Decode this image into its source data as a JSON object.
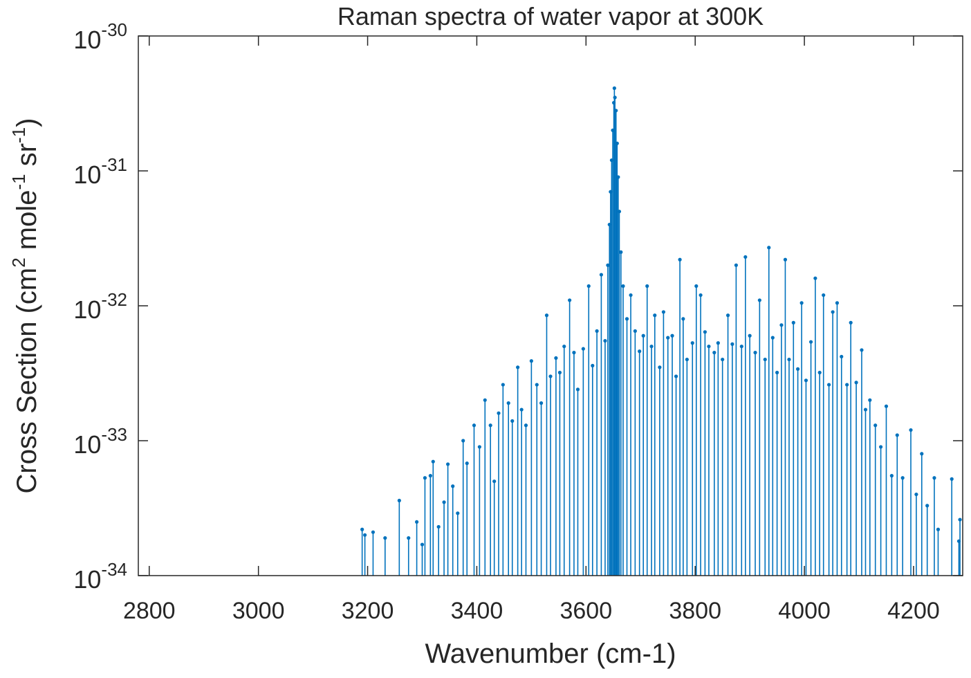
{
  "chart_data": {
    "type": "stem",
    "title": "Raman spectra of water vapor at 300K",
    "x_label": "Wavenumber (cm-1)",
    "y_label_parts": [
      "Cross Section (cm",
      "2",
      " mole",
      "-1",
      " sr",
      "-1",
      ")"
    ],
    "log_y": true,
    "box": true,
    "xlim": [
      2780,
      4290
    ],
    "xticks": [
      2800,
      3000,
      3200,
      3400,
      3600,
      3800,
      4000,
      4200
    ],
    "ylim": [
      1e-34,
      1e-30
    ],
    "yticks": [
      {
        "value": 1e-34,
        "base": "10",
        "exponent": "-34"
      },
      {
        "value": 1e-33,
        "base": "10",
        "exponent": "-33"
      },
      {
        "value": 1e-32,
        "base": "10",
        "exponent": "-32"
      },
      {
        "value": 1e-31,
        "base": "10",
        "exponent": "-31"
      },
      {
        "value": 1e-30,
        "base": "10",
        "exponent": "-30"
      }
    ],
    "series": [
      {
        "name": "Cross Section",
        "color": "#0072BD",
        "x": [
          3190,
          3195,
          3210,
          3232,
          3258,
          3275,
          3290,
          3300,
          3305,
          3315,
          3320,
          3330,
          3340,
          3347,
          3356,
          3365,
          3375,
          3382,
          3395,
          3405,
          3415,
          3425,
          3432,
          3440,
          3448,
          3458,
          3465,
          3475,
          3482,
          3490,
          3500,
          3510,
          3518,
          3528,
          3535,
          3545,
          3552,
          3560,
          3570,
          3578,
          3585,
          3595,
          3605,
          3612,
          3620,
          3628,
          3635,
          3640,
          3643,
          3645,
          3647,
          3649,
          3651,
          3652,
          3653,
          3655,
          3657,
          3659,
          3661,
          3664,
          3668,
          3675,
          3682,
          3690,
          3698,
          3705,
          3712,
          3720,
          3726,
          3735,
          3742,
          3750,
          3758,
          3765,
          3772,
          3778,
          3785,
          3795,
          3802,
          3810,
          3818,
          3825,
          3835,
          3842,
          3850,
          3860,
          3868,
          3875,
          3885,
          3892,
          3900,
          3910,
          3918,
          3928,
          3935,
          3942,
          3950,
          3958,
          3965,
          3972,
          3980,
          3988,
          3995,
          4003,
          4012,
          4020,
          4028,
          4035,
          4045,
          4052,
          4060,
          4068,
          4078,
          4085,
          4095,
          4105,
          4112,
          4120,
          4130,
          4140,
          4150,
          4160,
          4170,
          4180,
          4195,
          4205,
          4215,
          4225,
          4238,
          4245,
          4270,
          4283,
          4285
        ],
        "values": [
          2.2e-34,
          2e-34,
          2.1e-34,
          1.9e-34,
          3.6e-34,
          1.9e-34,
          2.5e-34,
          1.7e-34,
          5.3e-34,
          5.5e-34,
          7e-34,
          2.3e-34,
          3.5e-34,
          6.7e-34,
          4.6e-34,
          2.9e-34,
          1e-33,
          6.8e-34,
          1.3e-33,
          9e-34,
          2e-33,
          1.3e-33,
          5e-34,
          1.6e-33,
          2.6e-33,
          1.9e-33,
          1.4e-33,
          3.5e-33,
          1.7e-33,
          1.3e-33,
          3.9e-33,
          2.6e-33,
          1.9e-33,
          8.5e-33,
          3e-33,
          4.1e-33,
          3.2e-33,
          5e-33,
          1.1e-32,
          4.5e-33,
          2.4e-33,
          4.8e-33,
          1.4e-32,
          3.6e-33,
          6.5e-33,
          1.7e-32,
          5.5e-33,
          2e-32,
          4e-32,
          7e-32,
          1.2e-31,
          2e-31,
          3.2e-31,
          4.1e-31,
          3.5e-31,
          2.8e-31,
          1.6e-31,
          9e-32,
          5e-32,
          2.5e-32,
          1.4e-32,
          8e-33,
          1.2e-32,
          6.5e-33,
          4.6e-33,
          6e-33,
          1.4e-32,
          5e-33,
          8.5e-33,
          3.5e-33,
          9e-33,
          5.8e-33,
          6e-33,
          3e-33,
          2.2e-32,
          8e-33,
          4e-33,
          5.3e-33,
          1.4e-32,
          1.2e-32,
          6.4e-33,
          5e-33,
          4.5e-33,
          5.3e-33,
          4e-33,
          8.5e-33,
          5.2e-33,
          2e-32,
          5e-33,
          2.3e-32,
          6e-33,
          4.5e-33,
          1.1e-32,
          4e-33,
          2.7e-32,
          5.8e-33,
          3.2e-33,
          7.2e-33,
          2.2e-32,
          4e-33,
          7.5e-33,
          3.4e-33,
          1.05e-32,
          2.8e-33,
          5.4e-33,
          1.6e-32,
          3.2e-33,
          1.2e-32,
          2.6e-33,
          9e-33,
          1.05e-32,
          4.2e-33,
          2.6e-33,
          7.5e-33,
          2.7e-33,
          4.7e-33,
          1.7e-33,
          2e-33,
          1.3e-33,
          9e-34,
          1.8e-33,
          5.5e-34,
          1.1e-33,
          5.3e-34,
          1.2e-33,
          4e-34,
          8e-34,
          3.3e-34,
          5.3e-34,
          2.2e-34,
          5.2e-34,
          1.8e-34,
          2.6e-34
        ]
      }
    ]
  }
}
